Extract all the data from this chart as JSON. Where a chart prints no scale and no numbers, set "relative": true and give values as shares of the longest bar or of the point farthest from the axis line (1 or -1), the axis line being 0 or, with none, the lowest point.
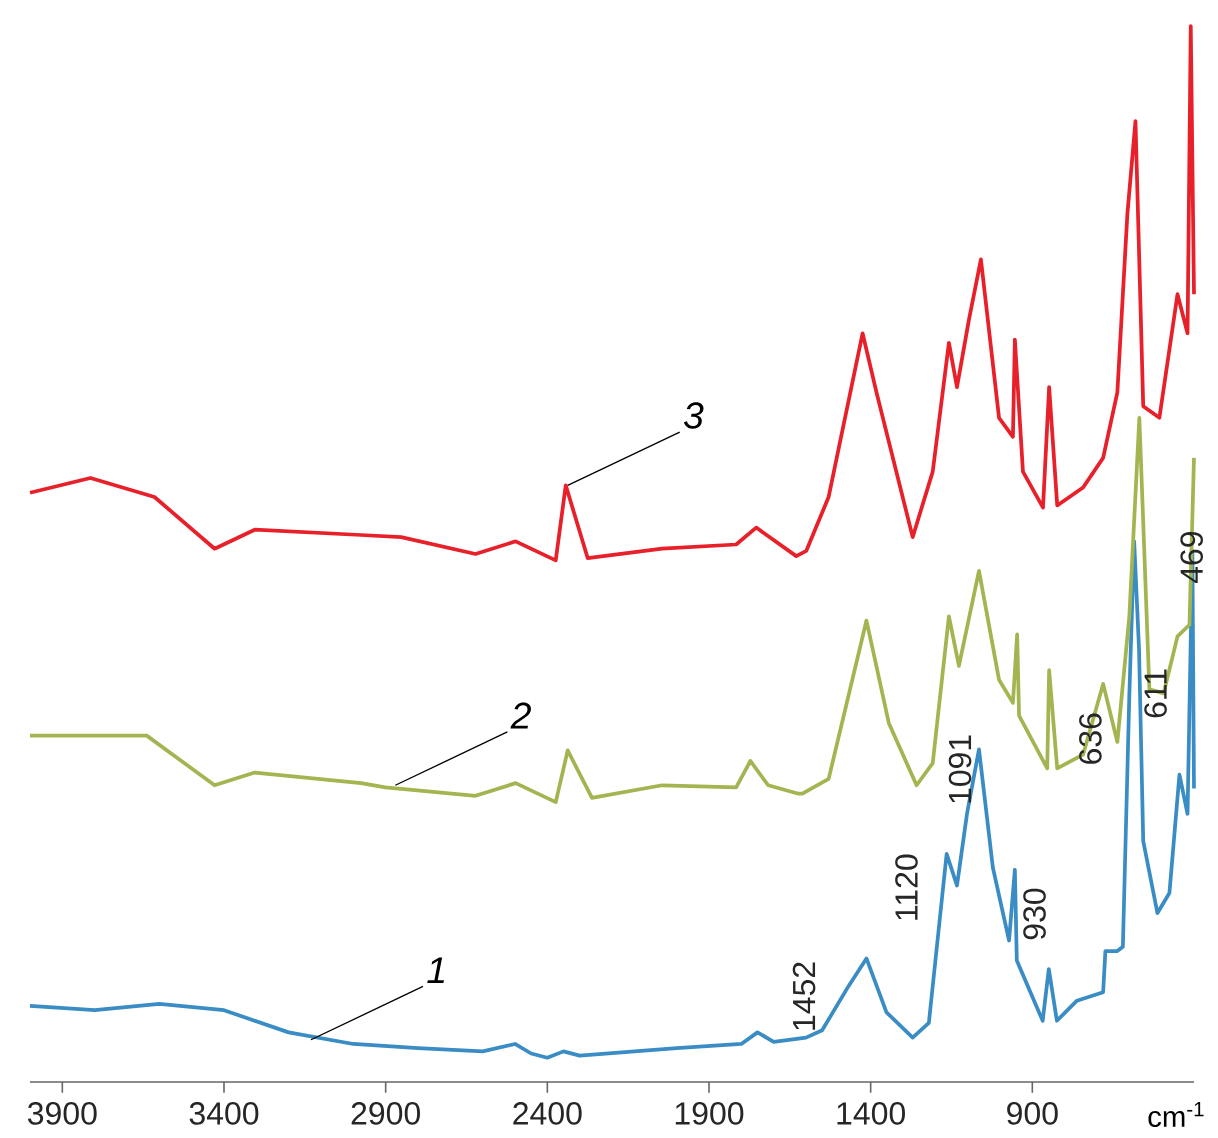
{
  "chart_data": {
    "type": "line",
    "relative": true,
    "xlim": [
      4000,
      400
    ],
    "xticks": [
      3900,
      3400,
      2900,
      2400,
      1900,
      1400,
      900
    ],
    "xlabel": "cm$^{-1}$",
    "line_style": "solid",
    "series": [
      {
        "color": "#3a8cc4",
        "x": [
          4000,
          3800,
          3600,
          3400,
          3200,
          3000,
          2800,
          2600,
          2500,
          2450,
          2400,
          2350,
          2300,
          2000,
          1800,
          1750,
          1700,
          1600,
          1550,
          1468,
          1413,
          1351,
          1270,
          1220,
          1165,
          1133,
          1102,
          1065,
          1022,
          972,
          954,
          948,
          868,
          849,
          824,
          762,
          681,
          674,
          637,
          620,
          600,
          585,
          570,
          557,
          513,
          476,
          445,
          420,
          405,
          400
        ],
        "values": [
          0.072,
          0.068,
          0.074,
          0.068,
          0.047,
          0.036,
          0.032,
          0.029,
          0.036,
          0.027,
          0.023,
          0.029,
          0.025,
          0.032,
          0.036,
          0.047,
          0.038,
          0.042,
          0.049,
          0.091,
          0.117,
          0.066,
          0.042,
          0.056,
          0.216,
          0.186,
          0.254,
          0.315,
          0.203,
          0.134,
          0.201,
          0.115,
          0.058,
          0.107,
          0.058,
          0.077,
          0.085,
          0.124,
          0.124,
          0.128,
          0.366,
          0.512,
          0.41,
          0.228,
          0.16,
          0.179,
          0.291,
          0.254,
          0.503,
          0.278
        ]
      },
      {
        "color": "#a3b550",
        "x": [
          4000,
          3720,
          3639,
          3429,
          3305,
          2976,
          2901,
          2622,
          2498,
          2374,
          2337,
          2262,
          2045,
          1816,
          1772,
          1717,
          1623,
          1611,
          1530,
          1413,
          1344,
          1258,
          1208,
          1158,
          1127,
          1065,
          1003,
          960,
          947,
          941,
          854,
          848,
          823,
          743,
          681,
          637,
          600,
          569,
          538,
          494,
          451,
          414,
          400
        ],
        "values": [
          0.328,
          0.328,
          0.328,
          0.281,
          0.293,
          0.283,
          0.279,
          0.271,
          0.283,
          0.265,
          0.314,
          0.269,
          0.281,
          0.279,
          0.304,
          0.281,
          0.273,
          0.273,
          0.287,
          0.437,
          0.34,
          0.281,
          0.302,
          0.441,
          0.394,
          0.484,
          0.381,
          0.359,
          0.424,
          0.347,
          0.297,
          0.39,
          0.297,
          0.31,
          0.377,
          0.322,
          0.441,
          0.629,
          0.372,
          0.368,
          0.422,
          0.433,
          0.591
        ]
      },
      {
        "color": "#e8202a",
        "x": [
          4000,
          3813,
          3615,
          3429,
          3305,
          2976,
          2852,
          2622,
          2498,
          2374,
          2343,
          2275,
          2045,
          1816,
          1754,
          1630,
          1599,
          1530,
          1425,
          1382,
          1270,
          1208,
          1158,
          1133,
          1096,
          1059,
          1003,
          960,
          954,
          929,
          867,
          848,
          823,
          743,
          681,
          637,
          606,
          581,
          557,
          507,
          451,
          420,
          410,
          400
        ],
        "values": [
          0.558,
          0.572,
          0.554,
          0.505,
          0.523,
          0.518,
          0.516,
          0.5,
          0.512,
          0.494,
          0.565,
          0.496,
          0.505,
          0.509,
          0.525,
          0.498,
          0.503,
          0.554,
          0.709,
          0.653,
          0.516,
          0.578,
          0.7,
          0.658,
          0.722,
          0.779,
          0.629,
          0.611,
          0.703,
          0.578,
          0.544,
          0.658,
          0.546,
          0.563,
          0.591,
          0.653,
          0.822,
          0.91,
          0.64,
          0.629,
          0.746,
          0.709,
          1.0,
          0.746
        ]
      }
    ],
    "annotations": [
      {
        "text": "1",
        "x": 3131,
        "y": 0.04
      },
      {
        "text": "2",
        "x": 2870,
        "y": 0.281
      },
      {
        "text": "3",
        "x": 2337,
        "y": 0.565
      },
      "1452",
      "1120",
      "1091",
      "930",
      "636",
      "611",
      "469"
    ]
  }
}
